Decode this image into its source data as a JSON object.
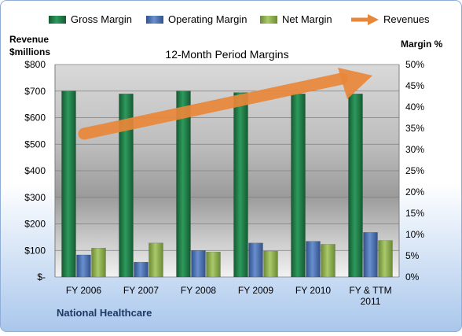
{
  "company": "National Healthcare",
  "chart_data": {
    "type": "bar",
    "title": "12-Month Period Margins",
    "left_axis": {
      "label_line1": "Revenue",
      "label_line2": "$millions",
      "range": [
        0,
        800
      ],
      "ticks": [
        "$-",
        "$100",
        "$200",
        "$300",
        "$400",
        "$500",
        "$600",
        "$700",
        "$800"
      ]
    },
    "right_axis": {
      "label": "Margin %",
      "range": [
        0,
        50
      ],
      "ticks": [
        "0%",
        "5%",
        "10%",
        "15%",
        "20%",
        "25%",
        "30%",
        "35%",
        "40%",
        "45%",
        "50%"
      ]
    },
    "categories": [
      [
        "FY 2006"
      ],
      [
        "FY 2007"
      ],
      [
        "FY 2008"
      ],
      [
        "FY 2009"
      ],
      [
        "FY 2010"
      ],
      [
        "FY & TTM",
        "2011"
      ]
    ],
    "series": [
      {
        "name": "Gross Margin",
        "axis": "right",
        "color": "#1d7a45",
        "values": [
          43.8,
          43.1,
          43.8,
          43.4,
          43.1,
          43.1
        ]
      },
      {
        "name": "Operating Margin",
        "axis": "right",
        "color": "#4a6fb0",
        "values": [
          5.2,
          3.5,
          6.2,
          8.0,
          8.4,
          10.5
        ]
      },
      {
        "name": "Net Margin",
        "axis": "right",
        "color": "#8db04f",
        "values": [
          6.8,
          8.0,
          5.9,
          6.1,
          7.7,
          8.6
        ]
      }
    ],
    "trend": {
      "name": "Revenues",
      "color": "#e8873a"
    },
    "grid": true,
    "legend": "top"
  }
}
